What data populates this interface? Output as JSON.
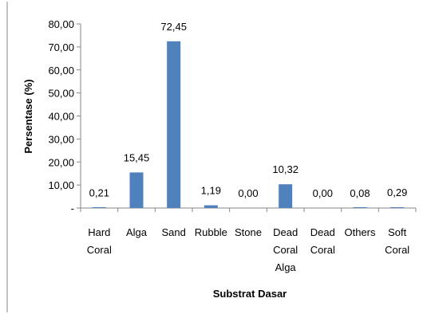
{
  "chart_data": {
    "type": "bar",
    "categories": [
      "Hard Coral",
      "Alga",
      "Sand",
      "Rubble",
      "Stone",
      "Dead Coral Alga",
      "Dead Coral",
      "Others",
      "Soft Coral"
    ],
    "category_lines": [
      [
        "Hard",
        "Coral"
      ],
      [
        "Alga"
      ],
      [
        "Sand"
      ],
      [
        "Rubble"
      ],
      [
        "Stone"
      ],
      [
        "Dead",
        "Coral",
        "Alga"
      ],
      [
        "Dead",
        "Coral"
      ],
      [
        "Others"
      ],
      [
        "Soft",
        "Coral"
      ]
    ],
    "values": [
      0.21,
      15.45,
      72.45,
      1.19,
      0.0,
      10.32,
      0.0,
      0.08,
      0.29
    ],
    "data_labels": [
      "0,21",
      "15,45",
      "72,45",
      "1,19",
      "0,00",
      "10,32",
      "0,00",
      "0,08",
      "0,29"
    ],
    "y_ticks": [
      0,
      10,
      20,
      30,
      40,
      50,
      60,
      70,
      80
    ],
    "y_tick_labels": [
      "-",
      "10,00",
      "20,00",
      "30,00",
      "40,00",
      "50,00",
      "60,00",
      "70,00",
      "80,00"
    ],
    "ylim": [
      0,
      80
    ],
    "xlabel": "Substrat Dasar",
    "ylabel": "Persentase (%)",
    "grid": false,
    "legend": "none",
    "bar_color": "#4f81bd",
    "axis_color": "#868686"
  }
}
